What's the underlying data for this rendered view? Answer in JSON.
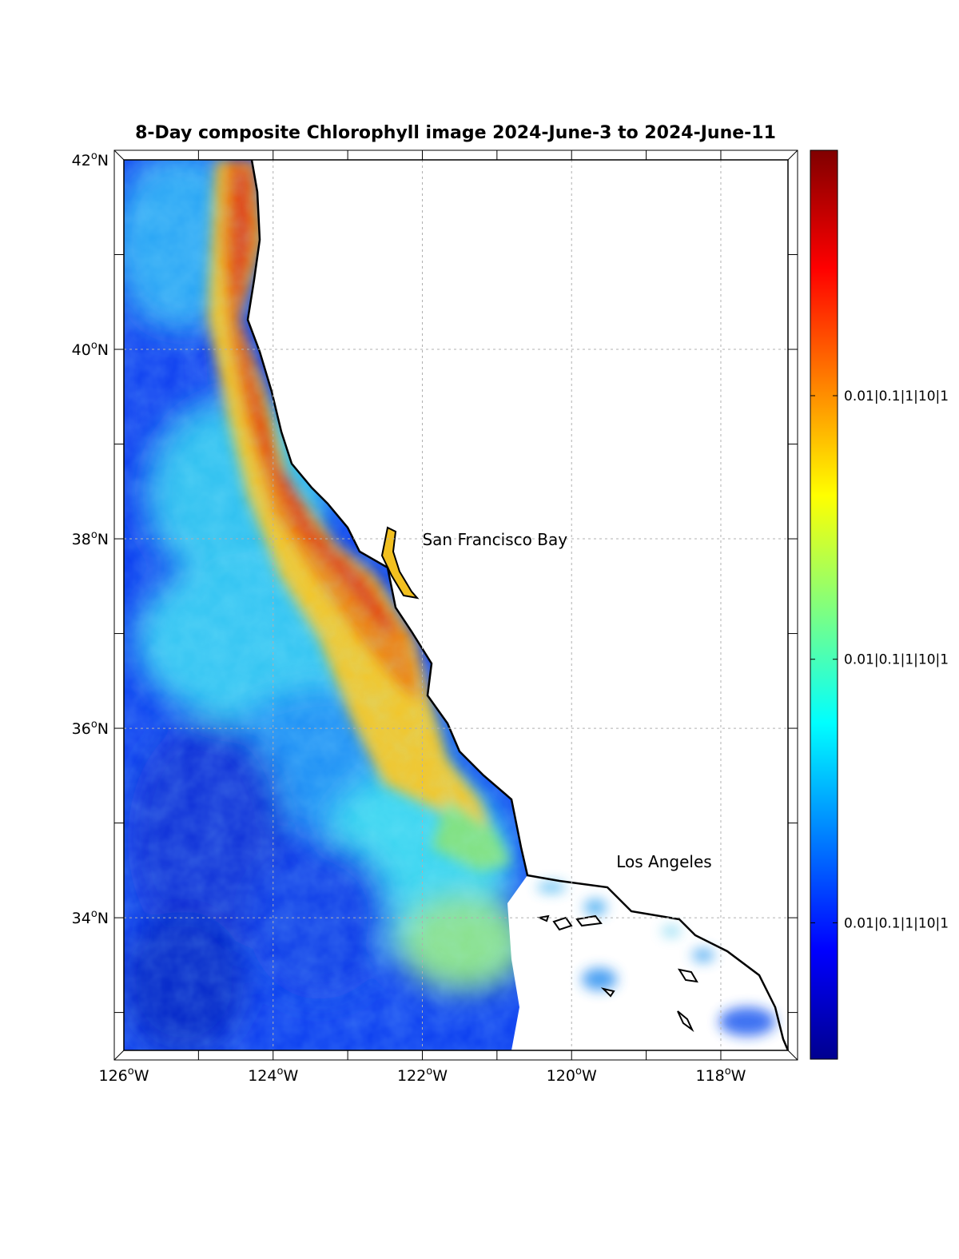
{
  "title": "8-Day composite Chlorophyll image 2024-June-3 to 2024-June-11",
  "map": {
    "lon_range": [
      -126,
      -117.1
    ],
    "lat_range": [
      32.6,
      42
    ],
    "lat_ticks": [
      {
        "value": 42,
        "num": "42",
        "hem": "N"
      },
      {
        "value": 40,
        "num": "40",
        "hem": "N"
      },
      {
        "value": 38,
        "num": "38",
        "hem": "N"
      },
      {
        "value": 36,
        "num": "36",
        "hem": "N"
      },
      {
        "value": 34,
        "num": "34",
        "hem": "N"
      }
    ],
    "lon_ticks": [
      {
        "value": -126,
        "num": "126",
        "hem": "W"
      },
      {
        "value": -124,
        "num": "124",
        "hem": "W"
      },
      {
        "value": -122,
        "num": "122",
        "hem": "W"
      },
      {
        "value": -120,
        "num": "120",
        "hem": "W"
      },
      {
        "value": -118,
        "num": "118",
        "hem": "W"
      }
    ],
    "degree_symbol": "o",
    "places": [
      {
        "name": "San Francisco Bay",
        "lon": -122.0,
        "lat": 38.0
      },
      {
        "name": "Los Angeles",
        "lon": -119.4,
        "lat": 34.6
      }
    ]
  },
  "colorbar": {
    "colormap": "jet",
    "tick_labels": [
      {
        "text": "0.01|0.1|1|10|1",
        "frac": 0.73
      },
      {
        "text": "0.01|0.1|1|10|1",
        "frac": 0.44
      },
      {
        "text": "0.01|0.1|1|10|1",
        "frac": 0.15
      }
    ]
  }
}
